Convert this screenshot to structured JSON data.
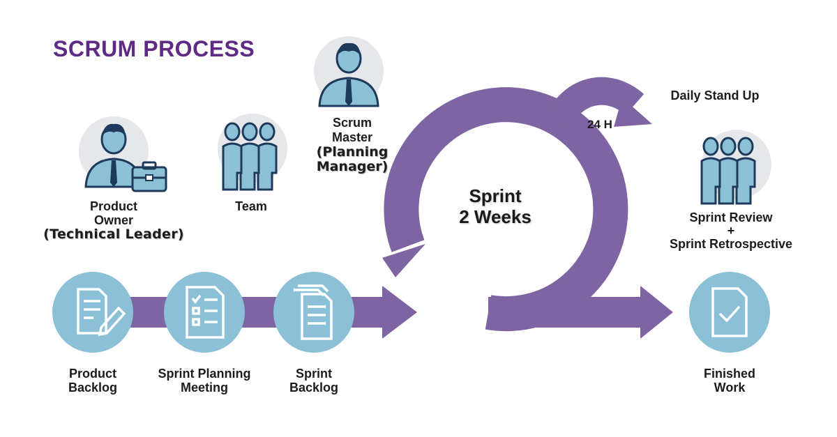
{
  "title": "SCRUM PROCESS",
  "colors": {
    "purple": "#7f64a3",
    "title": "#5e2a84",
    "light_blue": "#8cc0d6",
    "navy": "#1d3a5c",
    "avatar_bg": "#e5e7ea"
  },
  "roles": {
    "product_owner": [
      "Product",
      "Owner",
      "(Technical Leader)"
    ],
    "team": "Team",
    "scrum_master": [
      "Scrum",
      "Master",
      "(Planning",
      "Manager)"
    ]
  },
  "cycle": {
    "sprint_line1": "Sprint",
    "sprint_line2": "2 Weeks",
    "daily_interval": "24 H",
    "daily_label": "Daily Stand Up"
  },
  "review": [
    "Sprint Review",
    "+",
    "Sprint Retrospective"
  ],
  "steps": {
    "product_backlog": [
      "Product",
      "Backlog"
    ],
    "sprint_planning": [
      "Sprint Planning",
      "Meeting"
    ],
    "sprint_backlog": [
      "Sprint",
      "Backlog"
    ],
    "finished_work": [
      "Finished",
      "Work"
    ]
  },
  "icons": [
    "person-tie-icon",
    "briefcase-icon",
    "group-icon",
    "edit-document-icon",
    "checklist-icon",
    "documents-stack-icon",
    "check-document-icon"
  ]
}
